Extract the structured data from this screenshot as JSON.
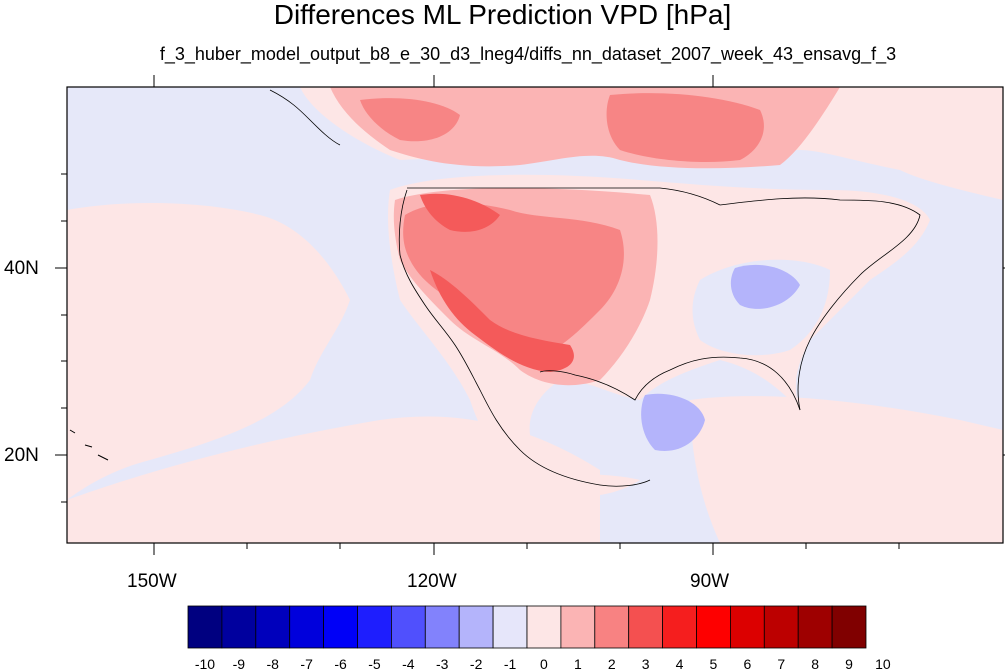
{
  "title": "Differences ML Prediction VPD [hPa]",
  "subtitle": "f_3_huber_model_output_b8_e_30_d3_lneg4/diffs_nn_dataset_2007_week_43_ensavg_f_3",
  "lat_labels": [
    "40N",
    "20N"
  ],
  "lon_labels": [
    "150W",
    "120W",
    "90W"
  ],
  "map_extent": {
    "lon_min": -160,
    "lon_max": -62,
    "lat_min": 11,
    "lat_max": 60
  },
  "colors": {
    "background_bin": "#e6e8f9",
    "land_low": "#fde6e6",
    "positive_1_2": "#fbb4b4",
    "positive_2_3": "#f78585",
    "positive_3_4": "#f45a5a",
    "negative_m2_m1": "#b4b4fb"
  },
  "colorbar": {
    "labels": [
      "-10",
      "-9",
      "-8",
      "-7",
      "-6",
      "-5",
      "-4",
      "-3",
      "-2",
      "-1",
      "0",
      "1",
      "2",
      "3",
      "4",
      "5",
      "6",
      "7",
      "8",
      "9",
      "10"
    ],
    "colors": [
      "#000080",
      "#00009e",
      "#0000bc",
      "#0000dc",
      "#0000f7",
      "#1e1efe",
      "#5050fd",
      "#8282fc",
      "#b4b4fb",
      "#e6e6fa",
      "#fde6e6",
      "#fbb4b4",
      "#f88282",
      "#f45050",
      "#f51e1e",
      "#fe0000",
      "#dc0000",
      "#bc0000",
      "#9e0000",
      "#800000"
    ]
  }
}
